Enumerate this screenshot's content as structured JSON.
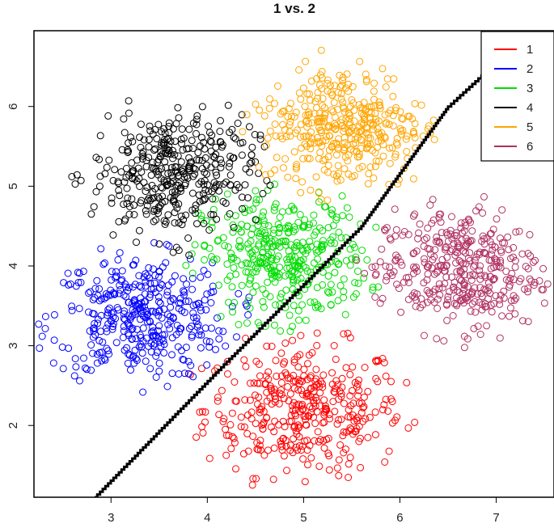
{
  "chart_data": {
    "type": "scatter",
    "title": "1  vs.  2",
    "xlabel": "",
    "ylabel": "",
    "xlim": [
      2.2,
      7.6
    ],
    "ylim": [
      1.1,
      6.95
    ],
    "x_ticks": [
      "3",
      "4",
      "5",
      "6",
      "7"
    ],
    "y_ticks": [
      "2",
      "3",
      "4",
      "5",
      "6"
    ],
    "grid": false,
    "legend_position": "top-right",
    "marker": "open-circle",
    "series": [
      {
        "name": "1",
        "color": "#ff0000",
        "center": [
          5.0,
          2.2
        ],
        "spread": [
          0.6,
          0.48
        ],
        "count": 380
      },
      {
        "name": "2",
        "color": "#0000ff",
        "center": [
          3.3,
          3.35
        ],
        "spread": [
          0.55,
          0.45
        ],
        "count": 380
      },
      {
        "name": "3",
        "color": "#00dd00",
        "center": [
          4.8,
          4.1
        ],
        "spread": [
          0.5,
          0.45
        ],
        "count": 380
      },
      {
        "name": "4",
        "color": "#000000",
        "center": [
          3.65,
          5.15
        ],
        "spread": [
          0.5,
          0.48
        ],
        "count": 380
      },
      {
        "name": "5",
        "color": "#ffa500",
        "center": [
          5.4,
          5.75
        ],
        "spread": [
          0.5,
          0.45
        ],
        "count": 380
      },
      {
        "name": "6",
        "color": "#b03060",
        "center": [
          6.6,
          3.95
        ],
        "spread": [
          0.5,
          0.45
        ],
        "count": 380
      }
    ],
    "decision_boundary": {
      "color": "#000000",
      "points": [
        [
          2.83,
          1.1
        ],
        [
          4.2,
          2.8
        ],
        [
          5.6,
          4.5
        ],
        [
          6.5,
          6.0
        ],
        [
          7.35,
          6.95
        ]
      ]
    }
  }
}
